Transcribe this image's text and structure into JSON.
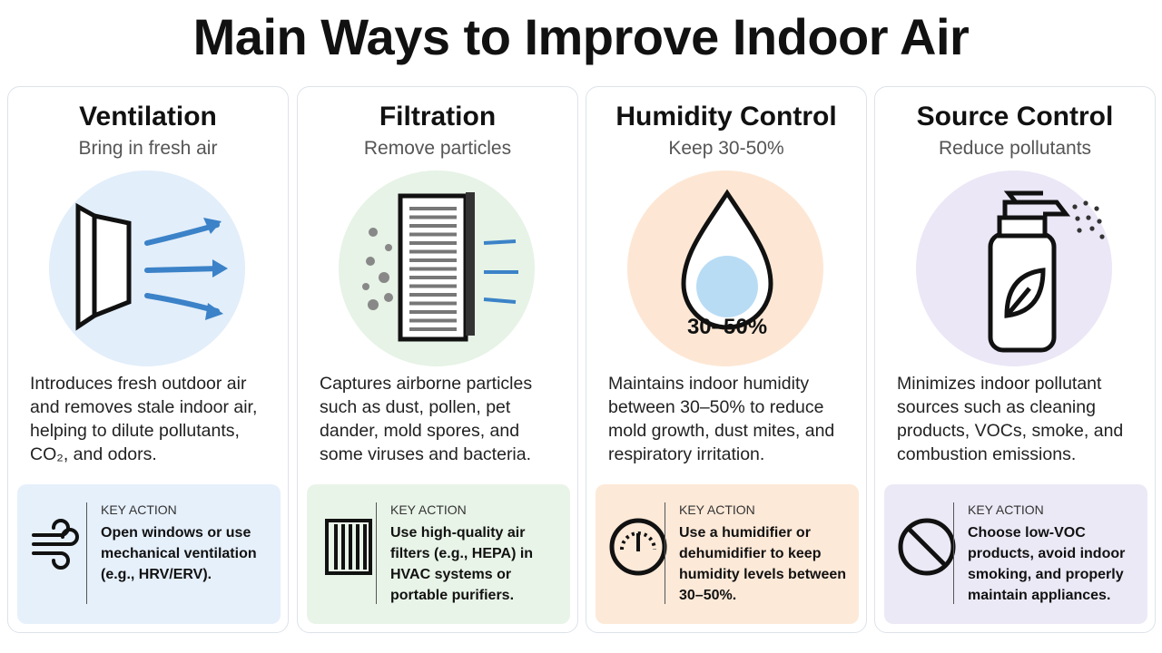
{
  "header": {
    "title": "Main Ways to Improve Indoor Air"
  },
  "cards": [
    {
      "title": "Ventilation",
      "subtitle": "Bring in fresh air",
      "description": "Introduces fresh outdoor air and removes stale indoor air, helping to dilute pollutants, CO₂, and odors.",
      "key_action_label": "KEY ACTION",
      "key_action": "Open windows or use mechanical ventilation (e.g., HRV/ERV)."
    },
    {
      "title": "Filtration",
      "subtitle": "Remove particles",
      "description": "Captures airborne particles such as dust, pollen, pet dander, mold spores, and some viruses and bacteria.",
      "key_action_label": "KEY ACTION",
      "key_action": "Use high-quality air filters (e.g., HEPA) in HVAC systems or portable purifiers."
    },
    {
      "title": "Humidity Control",
      "subtitle": "Keep 30-50%",
      "icon_label": "30–50%",
      "description": "Maintains indoor humidity between 30–50% to reduce mold growth, dust mites, and respiratory irritation.",
      "key_action_label": "KEY ACTION",
      "key_action": "Use a humidifier or dehumidifier to keep humidity levels between 30–50%."
    },
    {
      "title": "Source Control",
      "subtitle": "Reduce pollutants",
      "description": "Minimizes indoor pollutant sources such as cleaning products, VOCs, smoke, and combustion emissions.",
      "key_action_label": "KEY ACTION",
      "key_action": "Choose low-VOC products, avoid indoor smoking, and properly maintain appliances."
    }
  ]
}
